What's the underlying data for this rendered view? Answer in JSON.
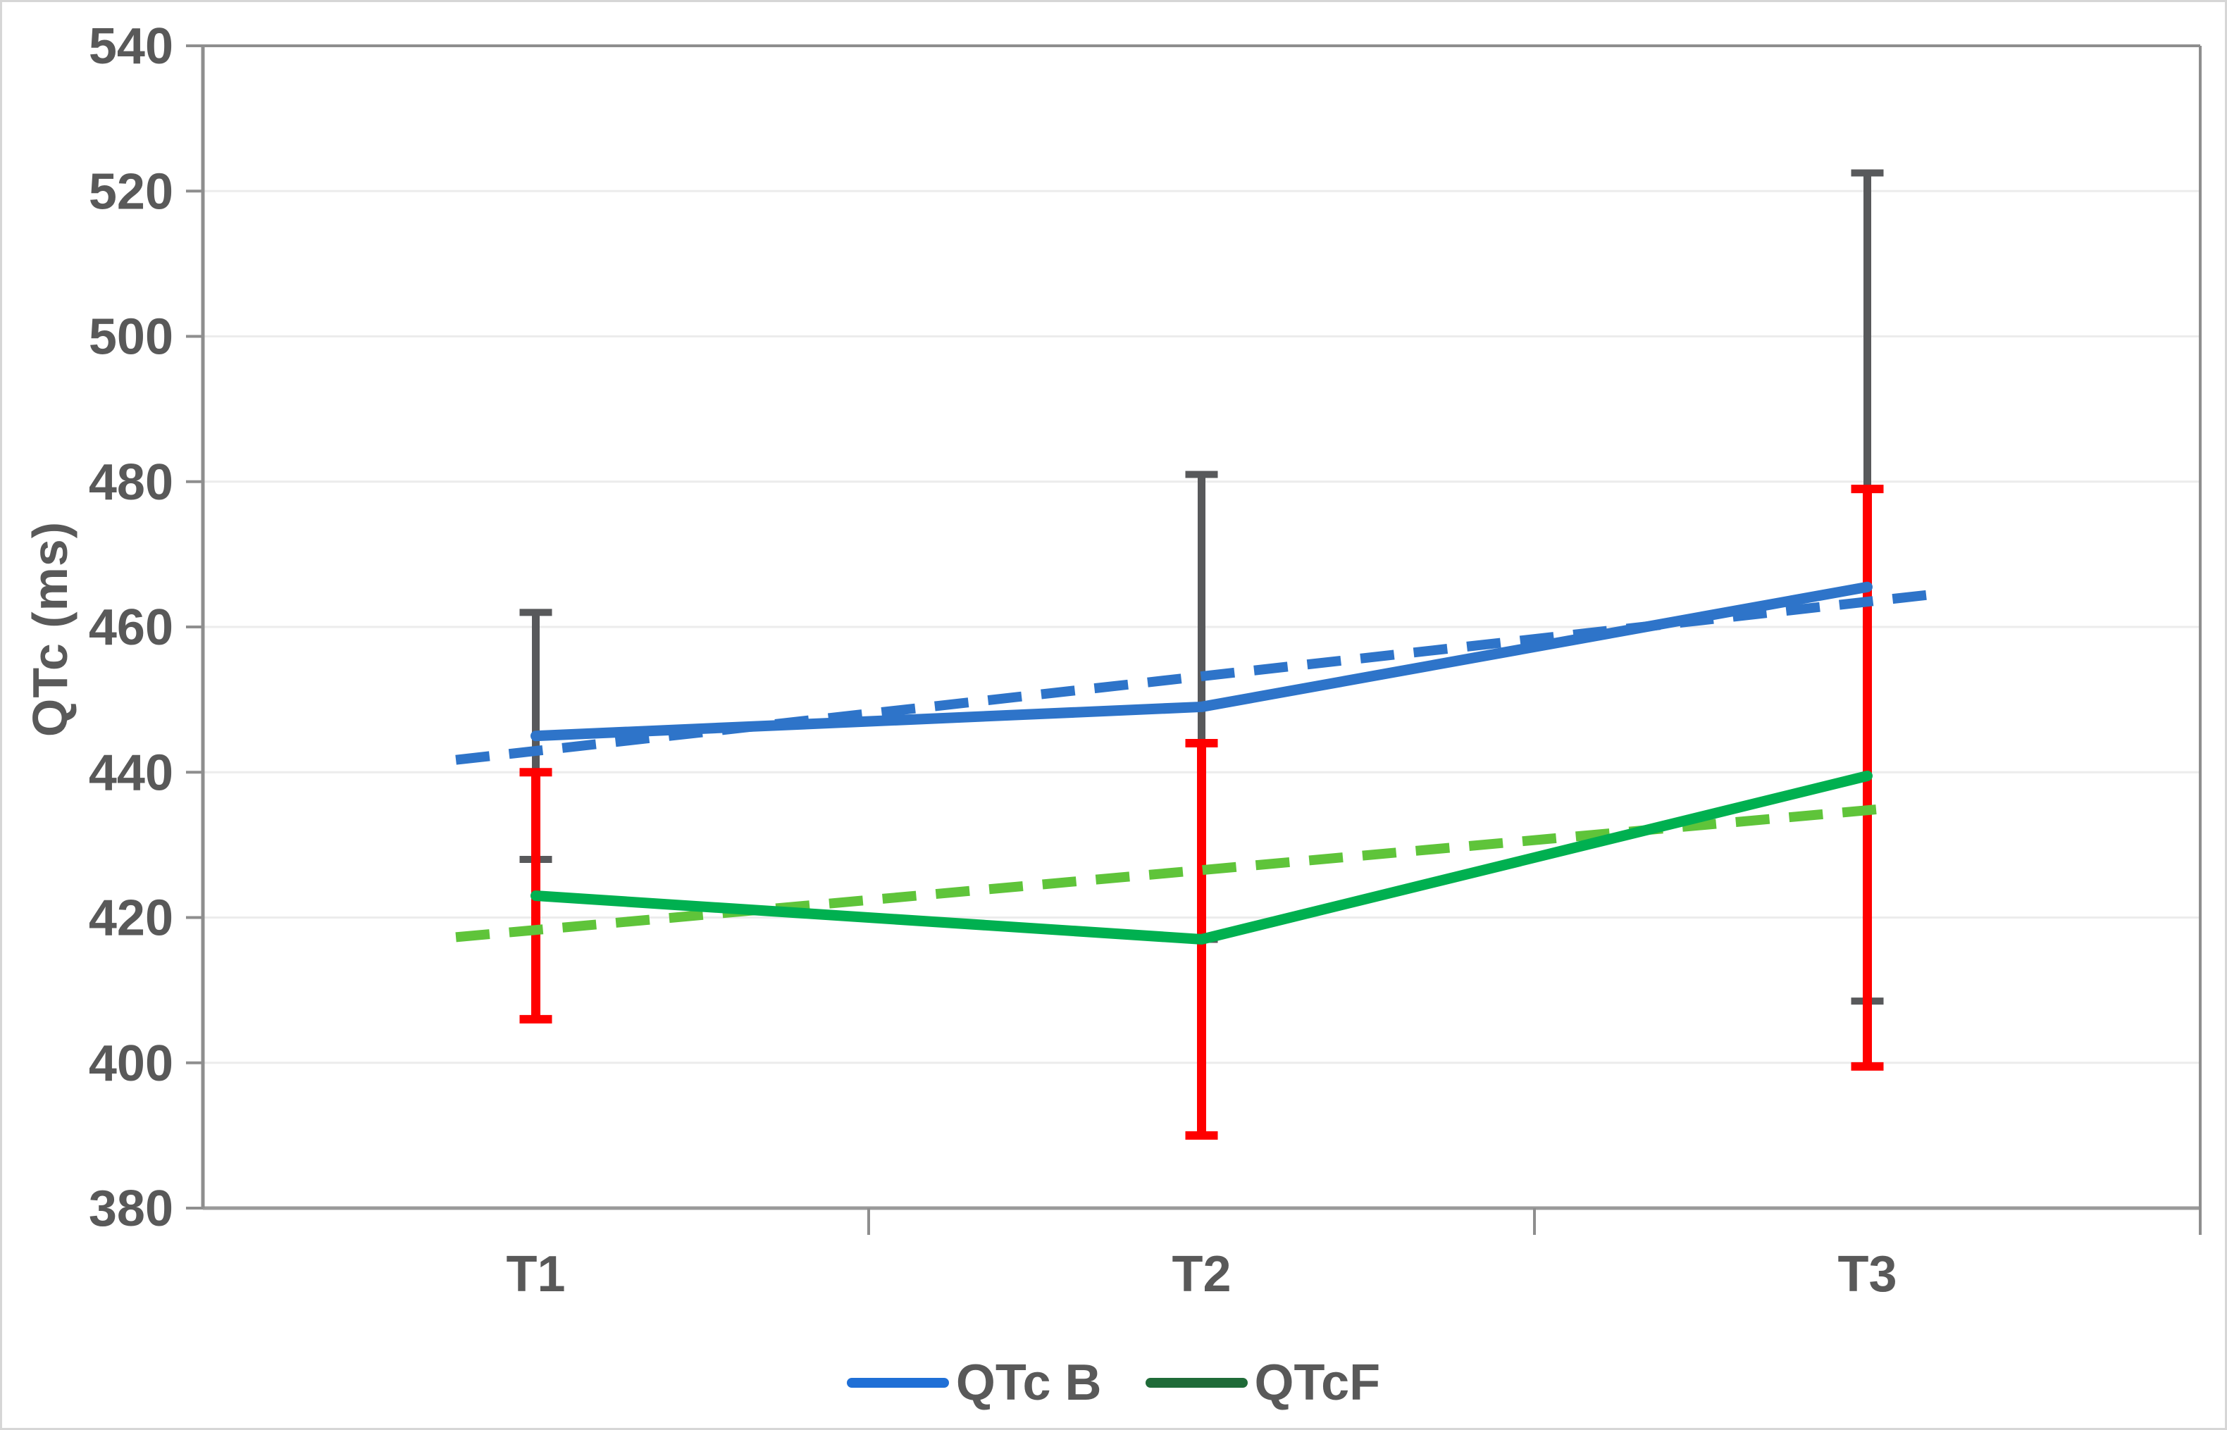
{
  "chart_data": {
    "type": "line",
    "title": "",
    "xlabel": "",
    "ylabel": "QTc (ms)",
    "categories": [
      "T1",
      "T2",
      "T3"
    ],
    "ylim": [
      380,
      540
    ],
    "yticks": [
      380,
      400,
      420,
      440,
      460,
      480,
      500,
      520,
      540
    ],
    "grid": true,
    "legend_position": "bottom",
    "series": [
      {
        "name": "QTc B",
        "style": "solid",
        "color": "#2E74C9",
        "values": [
          445,
          449,
          465.5
        ],
        "error_low": [
          428,
          417,
          408.5
        ],
        "error_high": [
          462,
          481,
          522.5
        ],
        "error_color": "#58595B"
      },
      {
        "name": "QTcF",
        "style": "solid",
        "color": "#00B050",
        "values": [
          423,
          417,
          439.5
        ],
        "error_low": [
          406,
          390,
          399.5
        ],
        "error_high": [
          440,
          444,
          479
        ],
        "error_color": "#FF0000"
      },
      {
        "name": "QTc B trendline",
        "style": "dashed",
        "color": "#2E74C9",
        "x": [
          0.88,
          3.09
        ],
        "values": [
          441.7,
          464.4
        ]
      },
      {
        "name": "QTcF trendline",
        "style": "dashed",
        "color": "#5FC43A",
        "x": [
          0.88,
          3.04
        ],
        "values": [
          417.3,
          435.1
        ]
      }
    ],
    "legend": [
      {
        "label": "QTc B",
        "color": "#1F6FD6"
      },
      {
        "label": "QTcF",
        "color": "#1F6B38"
      }
    ],
    "axis_colors": {
      "text": "#595959",
      "axis_line": "#8E8E8E",
      "bottom_axis_line": "#9A9A9A",
      "top_border_line": "#8E8E8E",
      "gridline": "#ECECEC"
    }
  }
}
